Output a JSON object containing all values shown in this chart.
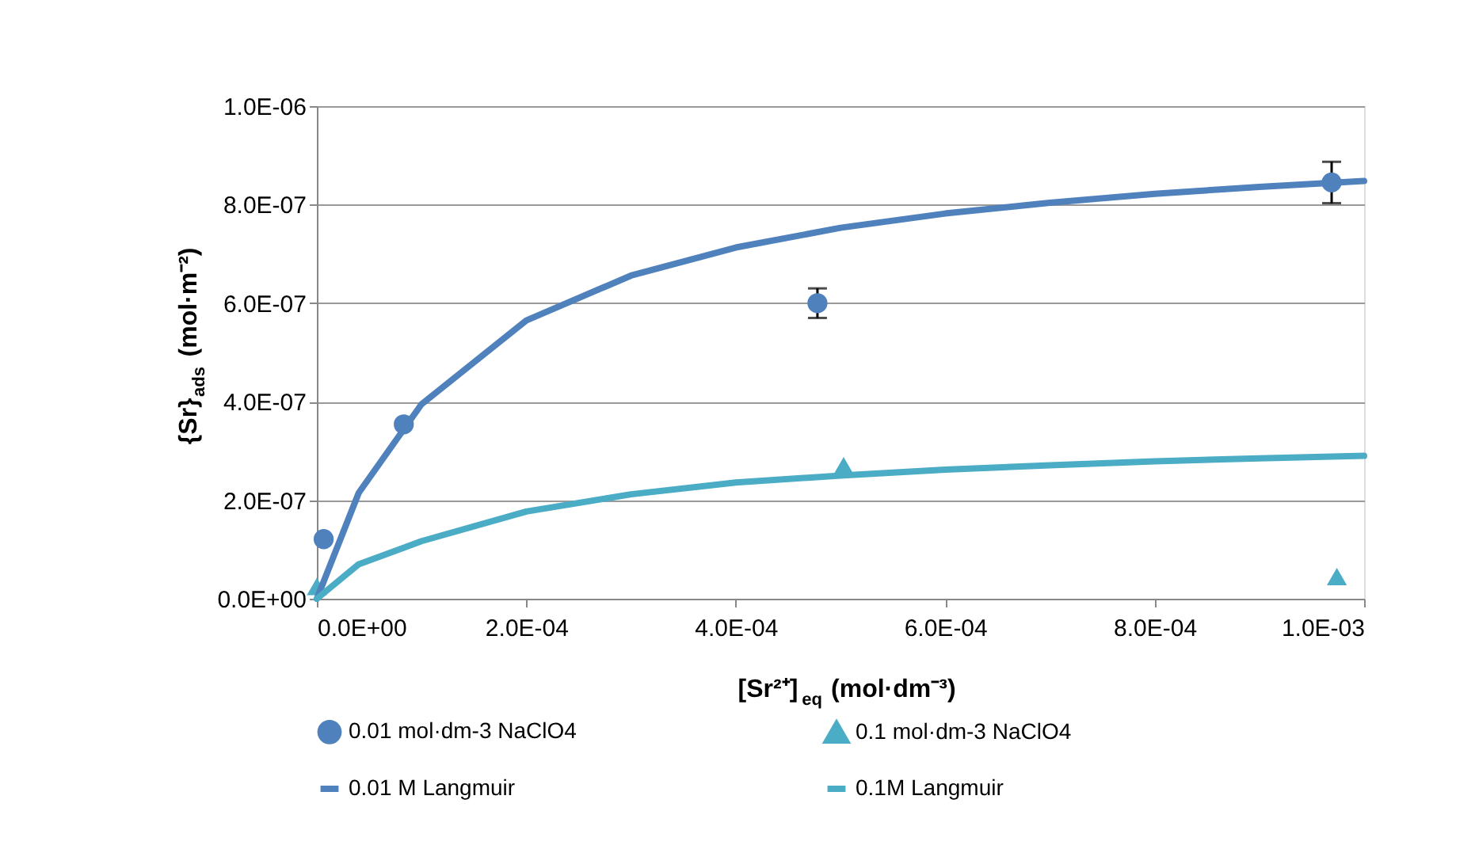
{
  "chart_data": {
    "type": "scatter",
    "xlabel": "[Sr²⁺]$_{eq}$ (mol·dm⁻³)",
    "ylabel": "{Sr}$_{ads}$ (mol·m⁻²)",
    "xlim": [
      0,
      0.001
    ],
    "ylim": [
      0,
      1e-06
    ],
    "xticks": [
      {
        "value": 0,
        "label": "0.0E+00"
      },
      {
        "value": 0.0002,
        "label": "2.0E-04"
      },
      {
        "value": 0.0004,
        "label": "4.0E-04"
      },
      {
        "value": 0.0006,
        "label": "6.0E-04"
      },
      {
        "value": 0.0008,
        "label": "8.0E-04"
      },
      {
        "value": 0.001,
        "label": "1.0E-03"
      }
    ],
    "yticks": [
      {
        "value": 0,
        "label": "0.0E+00"
      },
      {
        "value": 2e-07,
        "label": "2.0E-07"
      },
      {
        "value": 4e-07,
        "label": "4.0E-07"
      },
      {
        "value": 6e-07,
        "label": "6.0E-07"
      },
      {
        "value": 8e-07,
        "label": "8.0E-07"
      },
      {
        "value": 1e-06,
        "label": "1.0E-06"
      }
    ],
    "grid": "y",
    "legend": "bottom",
    "series": [
      {
        "name": "0.01 mol·dm-3 NaClO4",
        "marker": "circle",
        "color": "#4f81bd",
        "x": [
          6.5e-06,
          8.3e-05,
          0.000478,
          0.000969
        ],
        "values": [
          1.21e-07,
          3.54e-07,
          6e-07,
          8.45e-07
        ],
        "errors": [
          null,
          null,
          3e-08,
          4.2e-08
        ]
      },
      {
        "name": "0.1 mol·dm-3 NaClO4",
        "marker": "triangle",
        "color": "#4bacc6",
        "x": [
          0,
          0.000503,
          0.000974
        ],
        "values": [
          2.5e-08,
          2.7e-07,
          4.5e-08
        ]
      },
      {
        "name": "0.01 M Langmuir",
        "type": "line",
        "marker": "none",
        "color": "#4f81bd",
        "x": [
          0,
          4e-05,
          0.0001,
          0.0002,
          0.0003,
          0.0004,
          0.0005,
          0.0006,
          0.0007,
          0.0008,
          0.0009,
          0.001
        ],
        "values": [
          0,
          2.15e-07,
          3.95e-07,
          5.65e-07,
          6.56e-07,
          7.13e-07,
          7.53e-07,
          7.82e-07,
          8.04e-07,
          8.22e-07,
          8.36e-07,
          8.48e-07
        ]
      },
      {
        "name": "0.1M Langmuir",
        "type": "line",
        "marker": "none",
        "color": "#4bacc6",
        "x": [
          0,
          4e-05,
          0.0001,
          0.0002,
          0.0003,
          0.0004,
          0.0005,
          0.0006,
          0.0007,
          0.0008,
          0.0009,
          0.001
        ],
        "values": [
          0,
          7e-08,
          1.17e-07,
          1.77e-07,
          2.12e-07,
          2.36e-07,
          2.5e-07,
          2.62e-07,
          2.71e-07,
          2.79e-07,
          2.85e-07,
          2.9e-07
        ]
      }
    ]
  }
}
